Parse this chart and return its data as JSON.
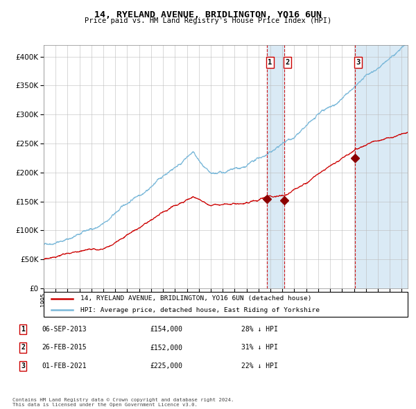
{
  "title": "14, RYELAND AVENUE, BRIDLINGTON, YO16 6UN",
  "subtitle": "Price paid vs. HM Land Registry's House Price Index (HPI)",
  "legend_line1": "14, RYELAND AVENUE, BRIDLINGTON, YO16 6UN (detached house)",
  "legend_line2": "HPI: Average price, detached house, East Riding of Yorkshire",
  "table_rows": [
    {
      "num": "1",
      "date": "06-SEP-2013",
      "price": "£154,000",
      "hpi": "28% ↓ HPI"
    },
    {
      "num": "2",
      "date": "26-FEB-2015",
      "price": "£152,000",
      "hpi": "31% ↓ HPI"
    },
    {
      "num": "3",
      "date": "01-FEB-2021",
      "price": "£225,000",
      "hpi": "22% ↓ HPI"
    }
  ],
  "footer": "Contains HM Land Registry data © Crown copyright and database right 2024.\nThis data is licensed under the Open Government Licence v3.0.",
  "sale1_date_num": 2013.68,
  "sale2_date_num": 2015.15,
  "sale3_date_num": 2021.08,
  "sale1_price": 154000,
  "sale2_price": 152000,
  "sale3_price": 225000,
  "hpi_color": "#7ab8d9",
  "price_color": "#cc0000",
  "marker_color": "#8b0000",
  "vspan_color": "#daeaf5",
  "vline_color": "#cc0000",
  "ylim": [
    0,
    420000
  ],
  "xlim_start": 1995.0,
  "xlim_end": 2025.5,
  "yticks": [
    0,
    50000,
    100000,
    150000,
    200000,
    250000,
    300000,
    350000,
    400000
  ]
}
